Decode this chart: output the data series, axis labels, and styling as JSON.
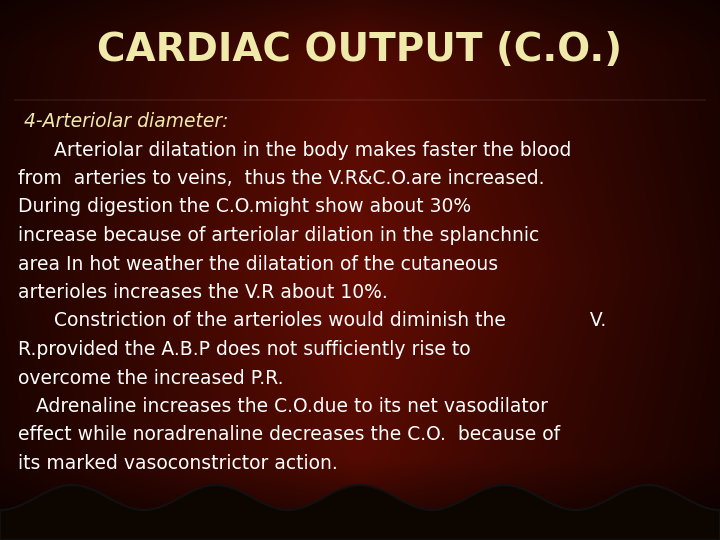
{
  "title": "CARDIAC OUTPUT (C.O.)",
  "title_color": "#f0eaaa",
  "title_fontsize": 28,
  "title_fontweight": "bold",
  "text_color": "#ffffff",
  "subtitle_color": "#f0eaaa",
  "body_fontsize": 13.5,
  "lines": [
    {
      "text": " 4-Arteriolar diameter:",
      "style": "italic",
      "color": "#f0eaaa"
    },
    {
      "text": "      Arteriolar dilatation in the body makes faster the blood",
      "style": "normal",
      "color": "#ffffff"
    },
    {
      "text": "from  arteries to veins,  thus the V.R&C.O.are increased.",
      "style": "normal",
      "color": "#ffffff"
    },
    {
      "text": "During digestion the C.O.might show about 30%",
      "style": "normal",
      "color": "#ffffff"
    },
    {
      "text": "increase because of arteriolar dilation in the splanchnic",
      "style": "normal",
      "color": "#ffffff"
    },
    {
      "text": "area In hot weather the dilatation of the cutaneous",
      "style": "normal",
      "color": "#ffffff"
    },
    {
      "text": "arterioles increases the V.R about 10%.",
      "style": "normal",
      "color": "#ffffff"
    },
    {
      "text": "      Constriction of the arterioles would diminish the              V.",
      "style": "normal",
      "color": "#ffffff"
    },
    {
      "text": "R.provided the A.B.P does not sufficiently rise to",
      "style": "normal",
      "color": "#ffffff"
    },
    {
      "text": "overcome the increased P.R.",
      "style": "normal",
      "color": "#ffffff"
    },
    {
      "text": "   Adrenaline increases the C.O.due to its net vasodilator",
      "style": "normal",
      "color": "#ffffff"
    },
    {
      "text": "effect while noradrenaline decreases the C.O.  because of",
      "style": "normal",
      "color": "#ffffff"
    },
    {
      "text": "its marked vasoconstrictor action.",
      "style": "normal",
      "color": "#ffffff"
    }
  ]
}
